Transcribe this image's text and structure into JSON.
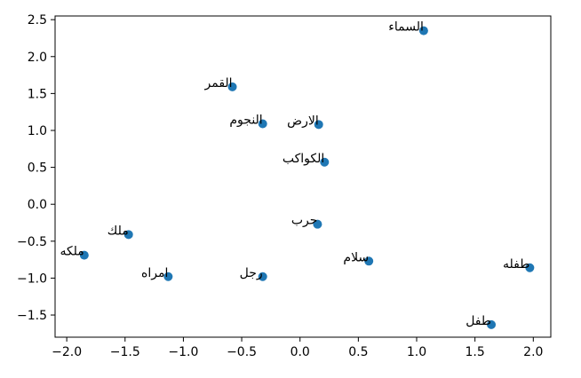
{
  "chart_data": {
    "type": "scatter",
    "title": "",
    "xlabel": "",
    "ylabel": "",
    "xlim": [
      -2.1,
      2.15
    ],
    "ylim": [
      -1.8,
      2.55
    ],
    "x_ticks": [
      -2.0,
      -1.5,
      -1.0,
      -0.5,
      0.0,
      0.5,
      1.0,
      1.5,
      2.0
    ],
    "x_tick_labels": [
      "−2.0",
      "−1.5",
      "−1.0",
      "−0.5",
      "0.0",
      "0.5",
      "1.0",
      "1.5",
      "2.0"
    ],
    "y_ticks": [
      -1.5,
      -1.0,
      -0.5,
      0.0,
      0.5,
      1.0,
      1.5,
      2.0,
      2.5
    ],
    "y_tick_labels": [
      "−1.5",
      "−1.0",
      "−0.5",
      "0.0",
      "0.5",
      "1.0",
      "1.5",
      "2.0",
      "2.5"
    ],
    "grid": false,
    "marker_color": "#1f77b4",
    "points": [
      {
        "label": "السماء",
        "x": 1.06,
        "y": 2.35
      },
      {
        "label": "القمر",
        "x": -0.58,
        "y": 1.59
      },
      {
        "label": "النجوم",
        "x": -0.32,
        "y": 1.09
      },
      {
        "label": "الارض",
        "x": 0.16,
        "y": 1.08
      },
      {
        "label": "الكواكب",
        "x": 0.21,
        "y": 0.57
      },
      {
        "label": "حرب",
        "x": 0.15,
        "y": -0.27
      },
      {
        "label": "ملك",
        "x": -1.47,
        "y": -0.41
      },
      {
        "label": "ملكه",
        "x": -1.85,
        "y": -0.69
      },
      {
        "label": "سلام",
        "x": 0.59,
        "y": -0.77
      },
      {
        "label": "طفله",
        "x": 1.97,
        "y": -0.86
      },
      {
        "label": "امراه",
        "x": -1.13,
        "y": -0.98
      },
      {
        "label": "رجل",
        "x": -0.32,
        "y": -0.98
      },
      {
        "label": "طفل",
        "x": 1.64,
        "y": -1.63
      }
    ]
  }
}
